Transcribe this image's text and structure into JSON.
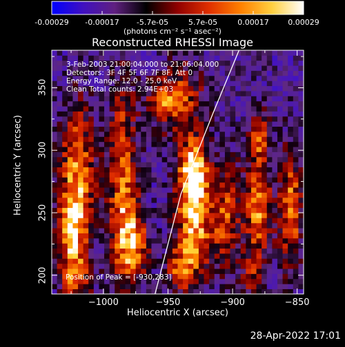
{
  "colorbar": {
    "ticks": [
      "-0.00029",
      "-0.00017",
      "-5.7e-05",
      "5.7e-05",
      "0.00017",
      "0.00029"
    ],
    "units": "(photons cm⁻² s⁻¹ asec⁻²)",
    "colors": [
      "#0000ff",
      "#4010c0",
      "#602080",
      "#000000",
      "#900000",
      "#e03000",
      "#ff8000",
      "#ffd040",
      "#ffffff"
    ]
  },
  "chart_data": {
    "type": "heatmap",
    "title": "Reconstructed RHESSI Image",
    "xlabel": "Heliocentric X (arcsec)",
    "ylabel": "Heliocentric Y (arcsec)",
    "xlim": [
      -1040,
      -845
    ],
    "ylim": [
      185,
      380
    ],
    "x_ticks": [
      -1000,
      -950,
      -900,
      -850
    ],
    "y_ticks": [
      200,
      250,
      300,
      350
    ],
    "clim": [
      -0.00029,
      0.00029
    ],
    "annotations": [
      "3-Feb-2003 21:00:04.000 to 21:06:04.000",
      "Detectors: 3F 4F 5F 6F 7F 8F, Att 0",
      "Energy Range: 12.0 - 25.0 keV",
      "Clean     Total counts: 2.94E+03"
    ],
    "peak_label": "Position of Peak = [-930,283]",
    "peak": {
      "x": -930,
      "y": 283
    },
    "limb": [
      [
        -960,
        185
      ],
      [
        -940,
        265
      ],
      [
        -915,
        330
      ],
      [
        -895,
        380
      ]
    ],
    "sources": [
      {
        "x": -1020,
        "y": 280,
        "sx": 10,
        "sy": 40,
        "a": 1.0
      },
      {
        "x": -1025,
        "y": 230,
        "sx": 8,
        "sy": 22,
        "a": 0.9
      },
      {
        "x": -1020,
        "y": 195,
        "sx": 8,
        "sy": 12,
        "a": 0.6
      },
      {
        "x": -985,
        "y": 270,
        "sx": 8,
        "sy": 60,
        "a": 0.95
      },
      {
        "x": -975,
        "y": 225,
        "sx": 8,
        "sy": 20,
        "a": 0.8
      },
      {
        "x": -940,
        "y": 340,
        "sx": 14,
        "sy": 22,
        "a": 0.7
      },
      {
        "x": -930,
        "y": 283,
        "sx": 8,
        "sy": 18,
        "a": 1.25
      },
      {
        "x": -930,
        "y": 240,
        "sx": 10,
        "sy": 28,
        "a": 1.1
      },
      {
        "x": -940,
        "y": 205,
        "sx": 8,
        "sy": 12,
        "a": 0.7
      },
      {
        "x": -905,
        "y": 250,
        "sx": 8,
        "sy": 30,
        "a": 0.75
      },
      {
        "x": -880,
        "y": 250,
        "sx": 8,
        "sy": 25,
        "a": 1.0
      },
      {
        "x": -880,
        "y": 310,
        "sx": 6,
        "sy": 18,
        "a": 0.8
      },
      {
        "x": -885,
        "y": 200,
        "sx": 6,
        "sy": 12,
        "a": 0.55
      },
      {
        "x": -855,
        "y": 255,
        "sx": 6,
        "sy": 35,
        "a": 0.95
      },
      {
        "x": -955,
        "y": 340,
        "sx": 10,
        "sy": 10,
        "a": 0.55
      }
    ]
  },
  "footer": {
    "timestamp": "28-Apr-2022 17:01"
  }
}
